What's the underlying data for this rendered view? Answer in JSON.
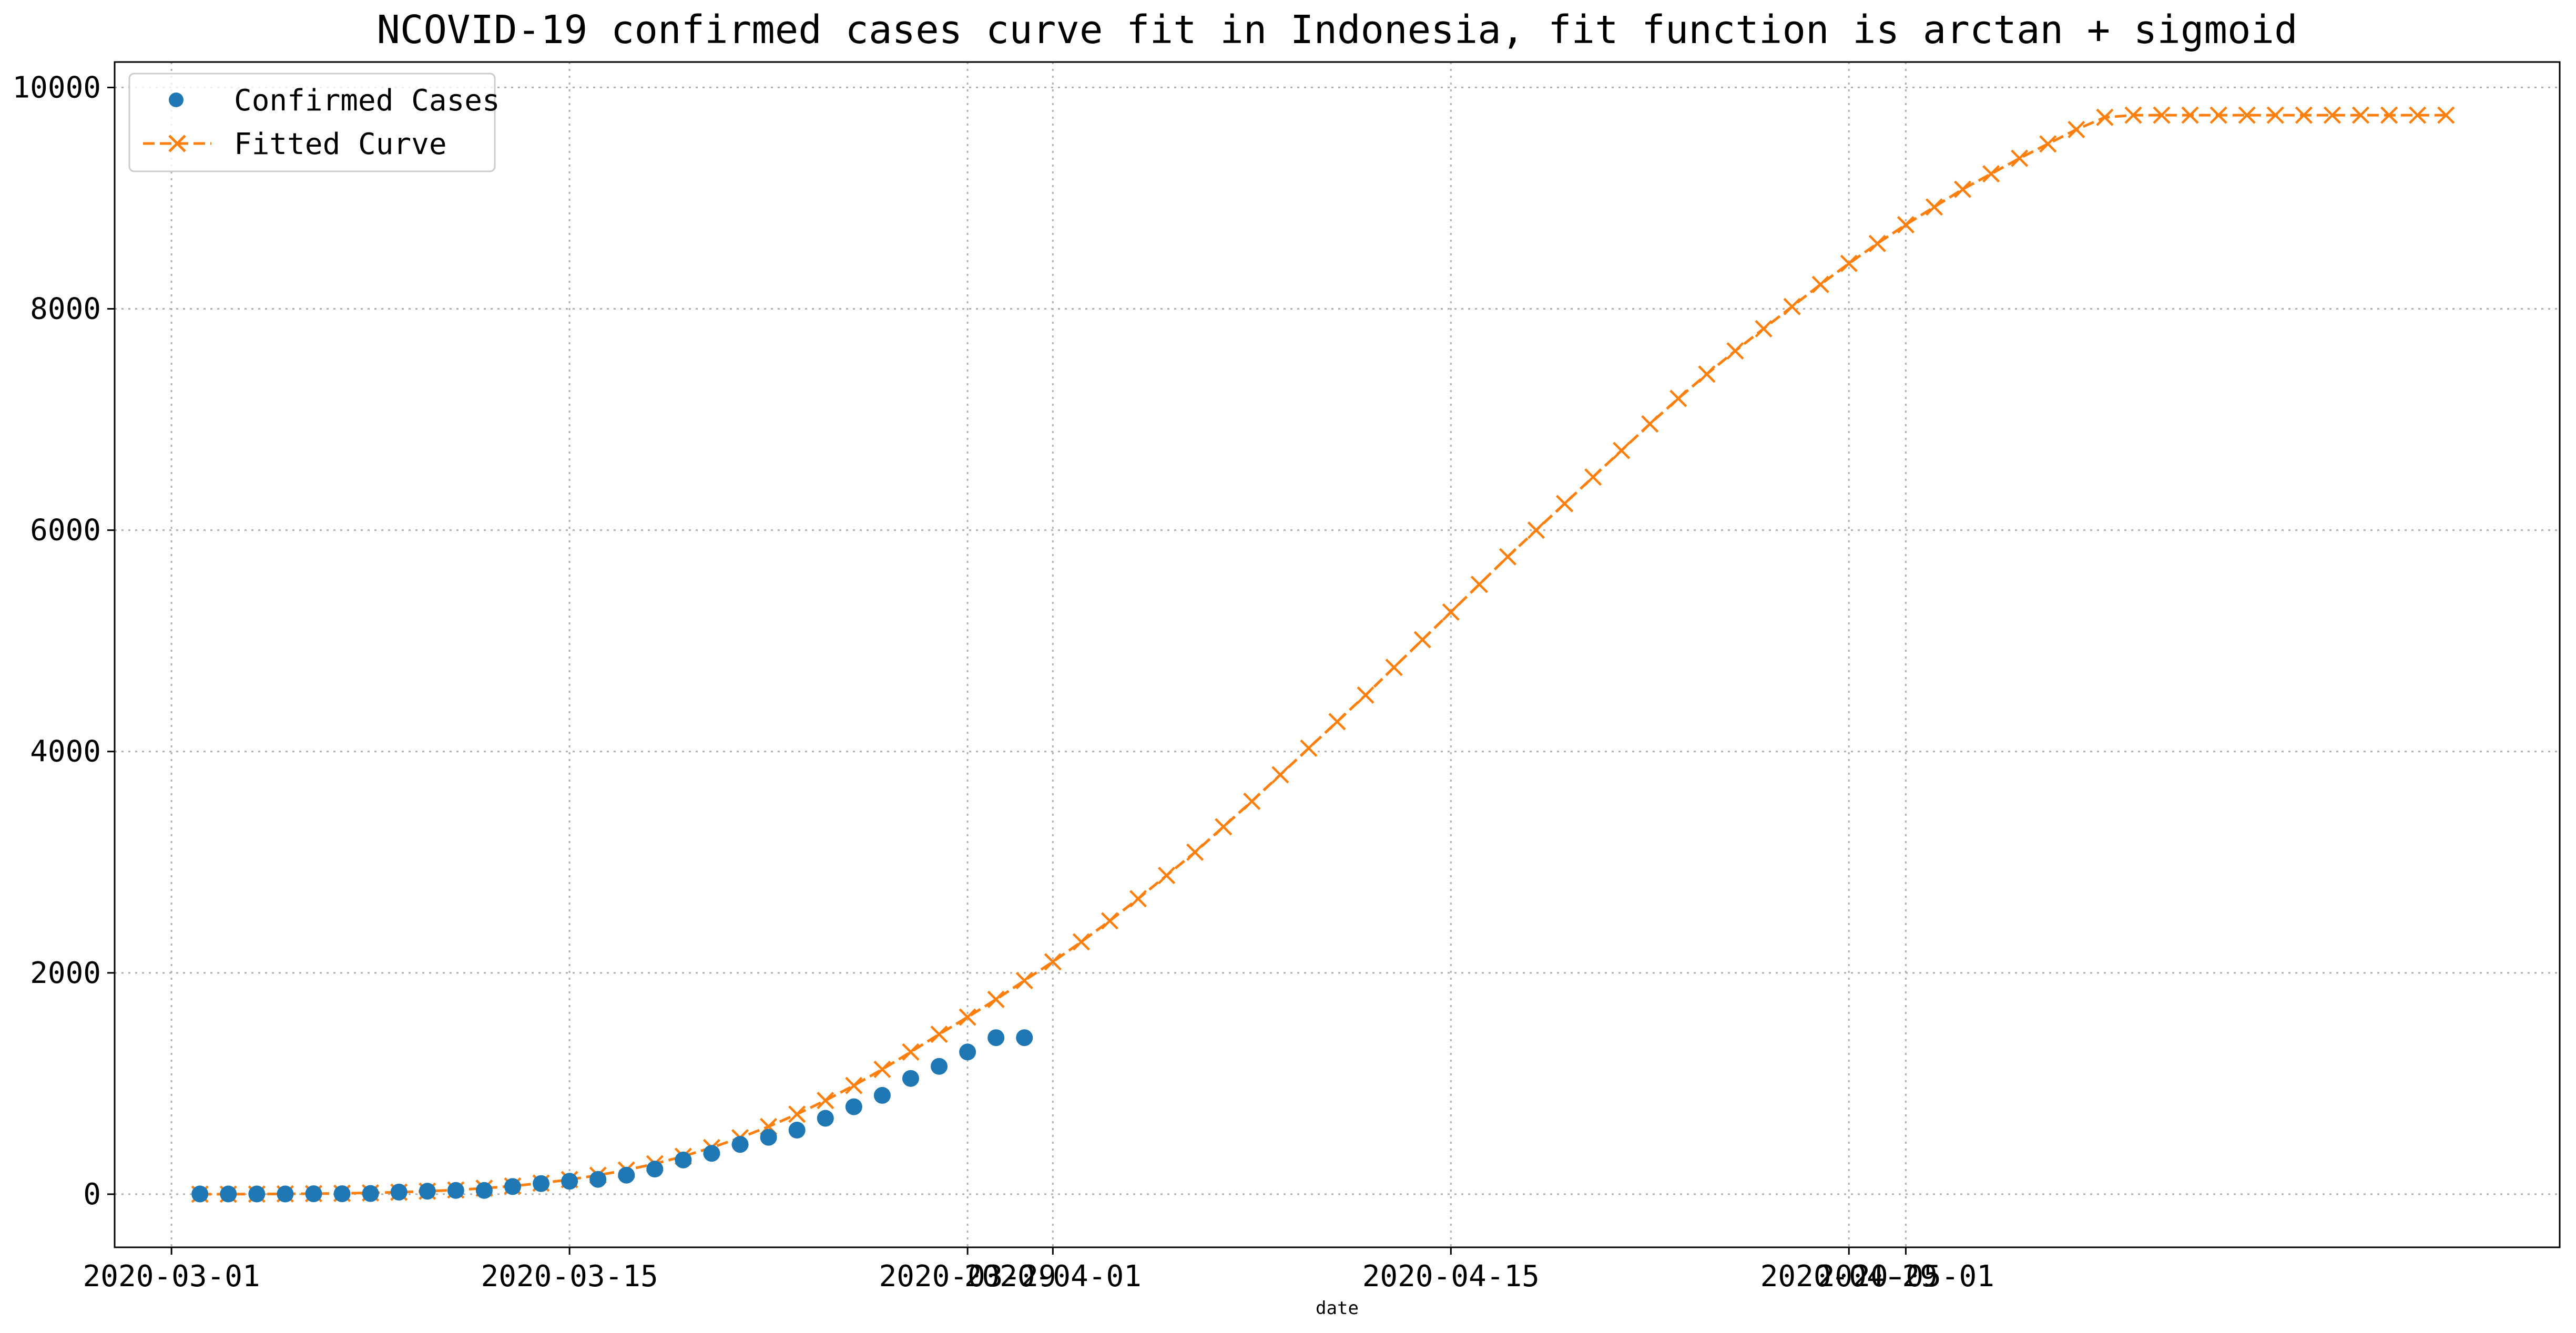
{
  "chart_data": {
    "type": "line",
    "title": "NCOVID-19 confirmed cases curve fit in Indonesia, fit function is arctan + sigmoid",
    "xlabel": "date",
    "ylabel": "",
    "x_axis": {
      "kind": "date",
      "range": [
        "2020-02-28",
        "2020-05-24"
      ],
      "ticks": [
        "2020-03-01",
        "2020-03-15",
        "2020-03-29",
        "2020-04-01",
        "2020-04-15",
        "2020-04-29",
        "2020-05-01"
      ],
      "tick_labels": [
        "2020-03-01",
        "2020-03-15",
        "2020-03-29",
        "2020-04-01",
        "2020-04-15",
        "2020-04-29",
        "2020-05-01"
      ]
    },
    "y_axis": {
      "range": [
        -480,
        10230
      ],
      "ticks": [
        0,
        2000,
        4000,
        6000,
        8000,
        10000
      ],
      "tick_labels": [
        "0",
        "2000",
        "4000",
        "6000",
        "8000",
        "10000"
      ]
    },
    "grid": true,
    "legend": {
      "placement": "top-left",
      "entries": [
        "Confirmed Cases",
        "Fitted Curve"
      ]
    },
    "series": [
      {
        "name": "Confirmed Cases",
        "style": "markers",
        "marker": "circle",
        "color": "#1f77b4",
        "x": [
          "2020-03-02",
          "2020-03-03",
          "2020-03-04",
          "2020-03-05",
          "2020-03-06",
          "2020-03-07",
          "2020-03-08",
          "2020-03-09",
          "2020-03-10",
          "2020-03-11",
          "2020-03-12",
          "2020-03-13",
          "2020-03-14",
          "2020-03-15",
          "2020-03-16",
          "2020-03-17",
          "2020-03-18",
          "2020-03-19",
          "2020-03-20",
          "2020-03-21",
          "2020-03-22",
          "2020-03-23",
          "2020-03-24",
          "2020-03-25",
          "2020-03-26",
          "2020-03-27",
          "2020-03-28",
          "2020-03-29",
          "2020-03-30",
          "2020-03-31"
        ],
        "values": [
          2,
          2,
          2,
          2,
          4,
          4,
          6,
          19,
          27,
          34,
          34,
          69,
          96,
          117,
          134,
          172,
          227,
          309,
          369,
          450,
          514,
          579,
          686,
          790,
          893,
          1046,
          1155,
          1285,
          1414,
          1414
        ]
      },
      {
        "name": "Fitted Curve",
        "style": "dashed-line-x-markers",
        "color": "#ff7f0e",
        "x": [
          "2020-03-02",
          "2020-03-03",
          "2020-03-04",
          "2020-03-05",
          "2020-03-06",
          "2020-03-07",
          "2020-03-08",
          "2020-03-09",
          "2020-03-10",
          "2020-03-11",
          "2020-03-12",
          "2020-03-13",
          "2020-03-14",
          "2020-03-15",
          "2020-03-16",
          "2020-03-17",
          "2020-03-18",
          "2020-03-19",
          "2020-03-20",
          "2020-03-21",
          "2020-03-22",
          "2020-03-23",
          "2020-03-24",
          "2020-03-25",
          "2020-03-26",
          "2020-03-27",
          "2020-03-28",
          "2020-03-29",
          "2020-03-30",
          "2020-03-31",
          "2020-04-01",
          "2020-04-02",
          "2020-04-03",
          "2020-04-04",
          "2020-04-05",
          "2020-04-06",
          "2020-04-07",
          "2020-04-08",
          "2020-04-09",
          "2020-04-10",
          "2020-04-11",
          "2020-04-12",
          "2020-04-13",
          "2020-04-14",
          "2020-04-15",
          "2020-04-16",
          "2020-04-17",
          "2020-04-18",
          "2020-04-19",
          "2020-04-20",
          "2020-04-21",
          "2020-04-22",
          "2020-04-23",
          "2020-04-24",
          "2020-04-25",
          "2020-04-26",
          "2020-04-27",
          "2020-04-28",
          "2020-04-29",
          "2020-04-30",
          "2020-05-01",
          "2020-05-02",
          "2020-05-03",
          "2020-05-04",
          "2020-05-05",
          "2020-05-06",
          "2020-05-07",
          "2020-05-08",
          "2020-05-09",
          "2020-05-10",
          "2020-05-11",
          "2020-05-12",
          "2020-05-13",
          "2020-05-14",
          "2020-05-15",
          "2020-05-16",
          "2020-05-17",
          "2020-05-18",
          "2020-05-19",
          "2020-05-20"
        ],
        "values": [
          0,
          0,
          1,
          3,
          5,
          8,
          12,
          18,
          27,
          38,
          54,
          74,
          100,
          132,
          171,
          218,
          275,
          342,
          421,
          510,
          611,
          723,
          847,
          982,
          1128,
          1285,
          1445,
          1600,
          1760,
          1930,
          2100,
          2280,
          2470,
          2670,
          2880,
          3090,
          3320,
          3550,
          3790,
          4030,
          4270,
          4510,
          4760,
          5010,
          5260,
          5510,
          5760,
          6000,
          6240,
          6480,
          6720,
          6960,
          7190,
          7410,
          7620,
          7820,
          8020,
          8220,
          8410,
          8590,
          8760,
          8920,
          9080,
          9220,
          9360,
          9490,
          9620,
          9730,
          9750,
          9750,
          9750,
          9750,
          9750,
          9750,
          9750,
          9750,
          9750,
          9750,
          9750,
          9750
        ]
      }
    ]
  }
}
